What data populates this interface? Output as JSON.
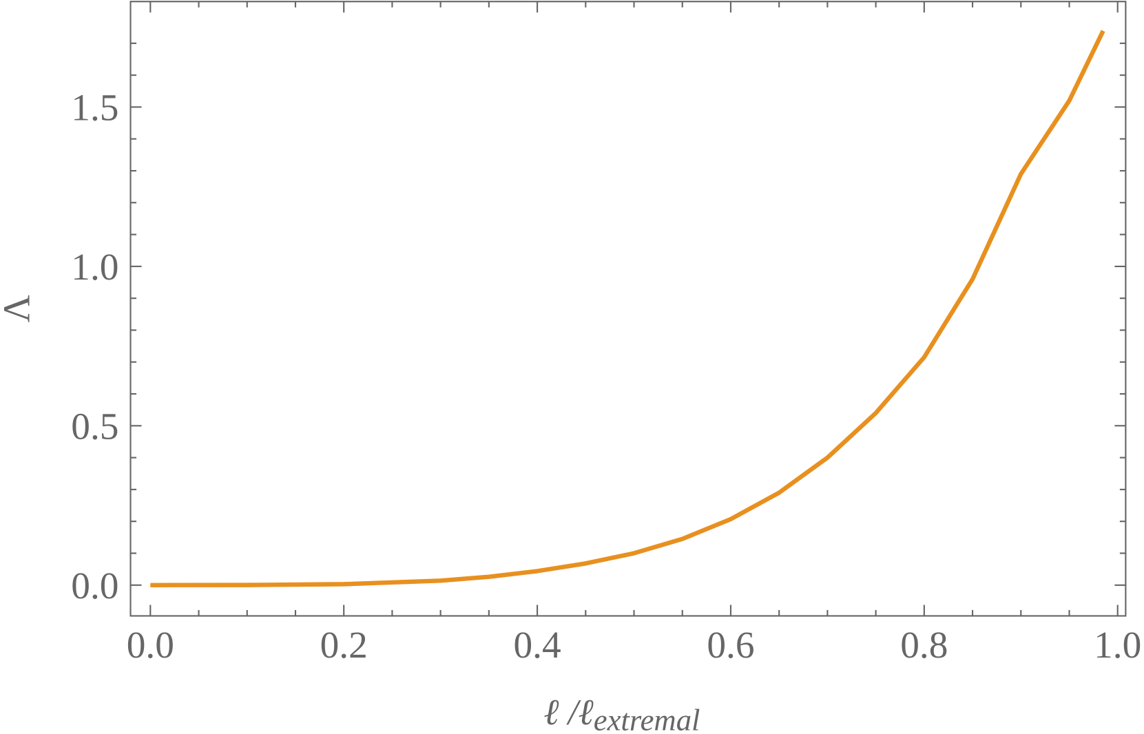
{
  "chart_data": {
    "type": "line",
    "xlabel": {
      "main": "ℓ /ℓ",
      "sub": "extremal"
    },
    "ylabel": "Λ",
    "x": [
      0,
      0.1,
      0.2,
      0.3,
      0.35,
      0.4,
      0.45,
      0.5,
      0.55,
      0.6,
      0.65,
      0.7,
      0.75,
      0.8,
      0.85,
      0.9,
      0.95,
      0.985
    ],
    "series": [
      {
        "color": "#e8901f",
        "values": [
          0,
          0.0003,
          0.003,
          0.014,
          0.026,
          0.044,
          0.068,
          0.1,
          0.145,
          0.207,
          0.29,
          0.4,
          0.54,
          0.715,
          0.96,
          1.29,
          1.52,
          1.739
        ]
      }
    ],
    "xlim": [
      -0.0205,
      1.0083
    ],
    "ylim": [
      -0.0966,
      1.831
    ],
    "xticks": [
      {
        "value": 0,
        "label": "0.0"
      },
      0.2,
      0.4,
      0.6,
      0.8,
      {
        "value": 1,
        "label": "1.0"
      }
    ],
    "yticks": [
      {
        "value": 0,
        "label": "0.0"
      },
      0.5,
      {
        "value": 1,
        "label": "1.0"
      },
      1.5
    ],
    "xminorticks": [
      0.05,
      0.1,
      0.15,
      0.25,
      0.3,
      0.35,
      0.45,
      0.5,
      0.55,
      0.65,
      0.7,
      0.75,
      0.85,
      0.9,
      0.95
    ],
    "yminorticks": [
      0.1,
      0.2,
      0.3,
      0.4,
      0.6,
      0.7,
      0.8,
      0.9,
      1.1,
      1.2,
      1.3,
      1.4,
      1.6,
      1.7
    ],
    "grid": false
  }
}
